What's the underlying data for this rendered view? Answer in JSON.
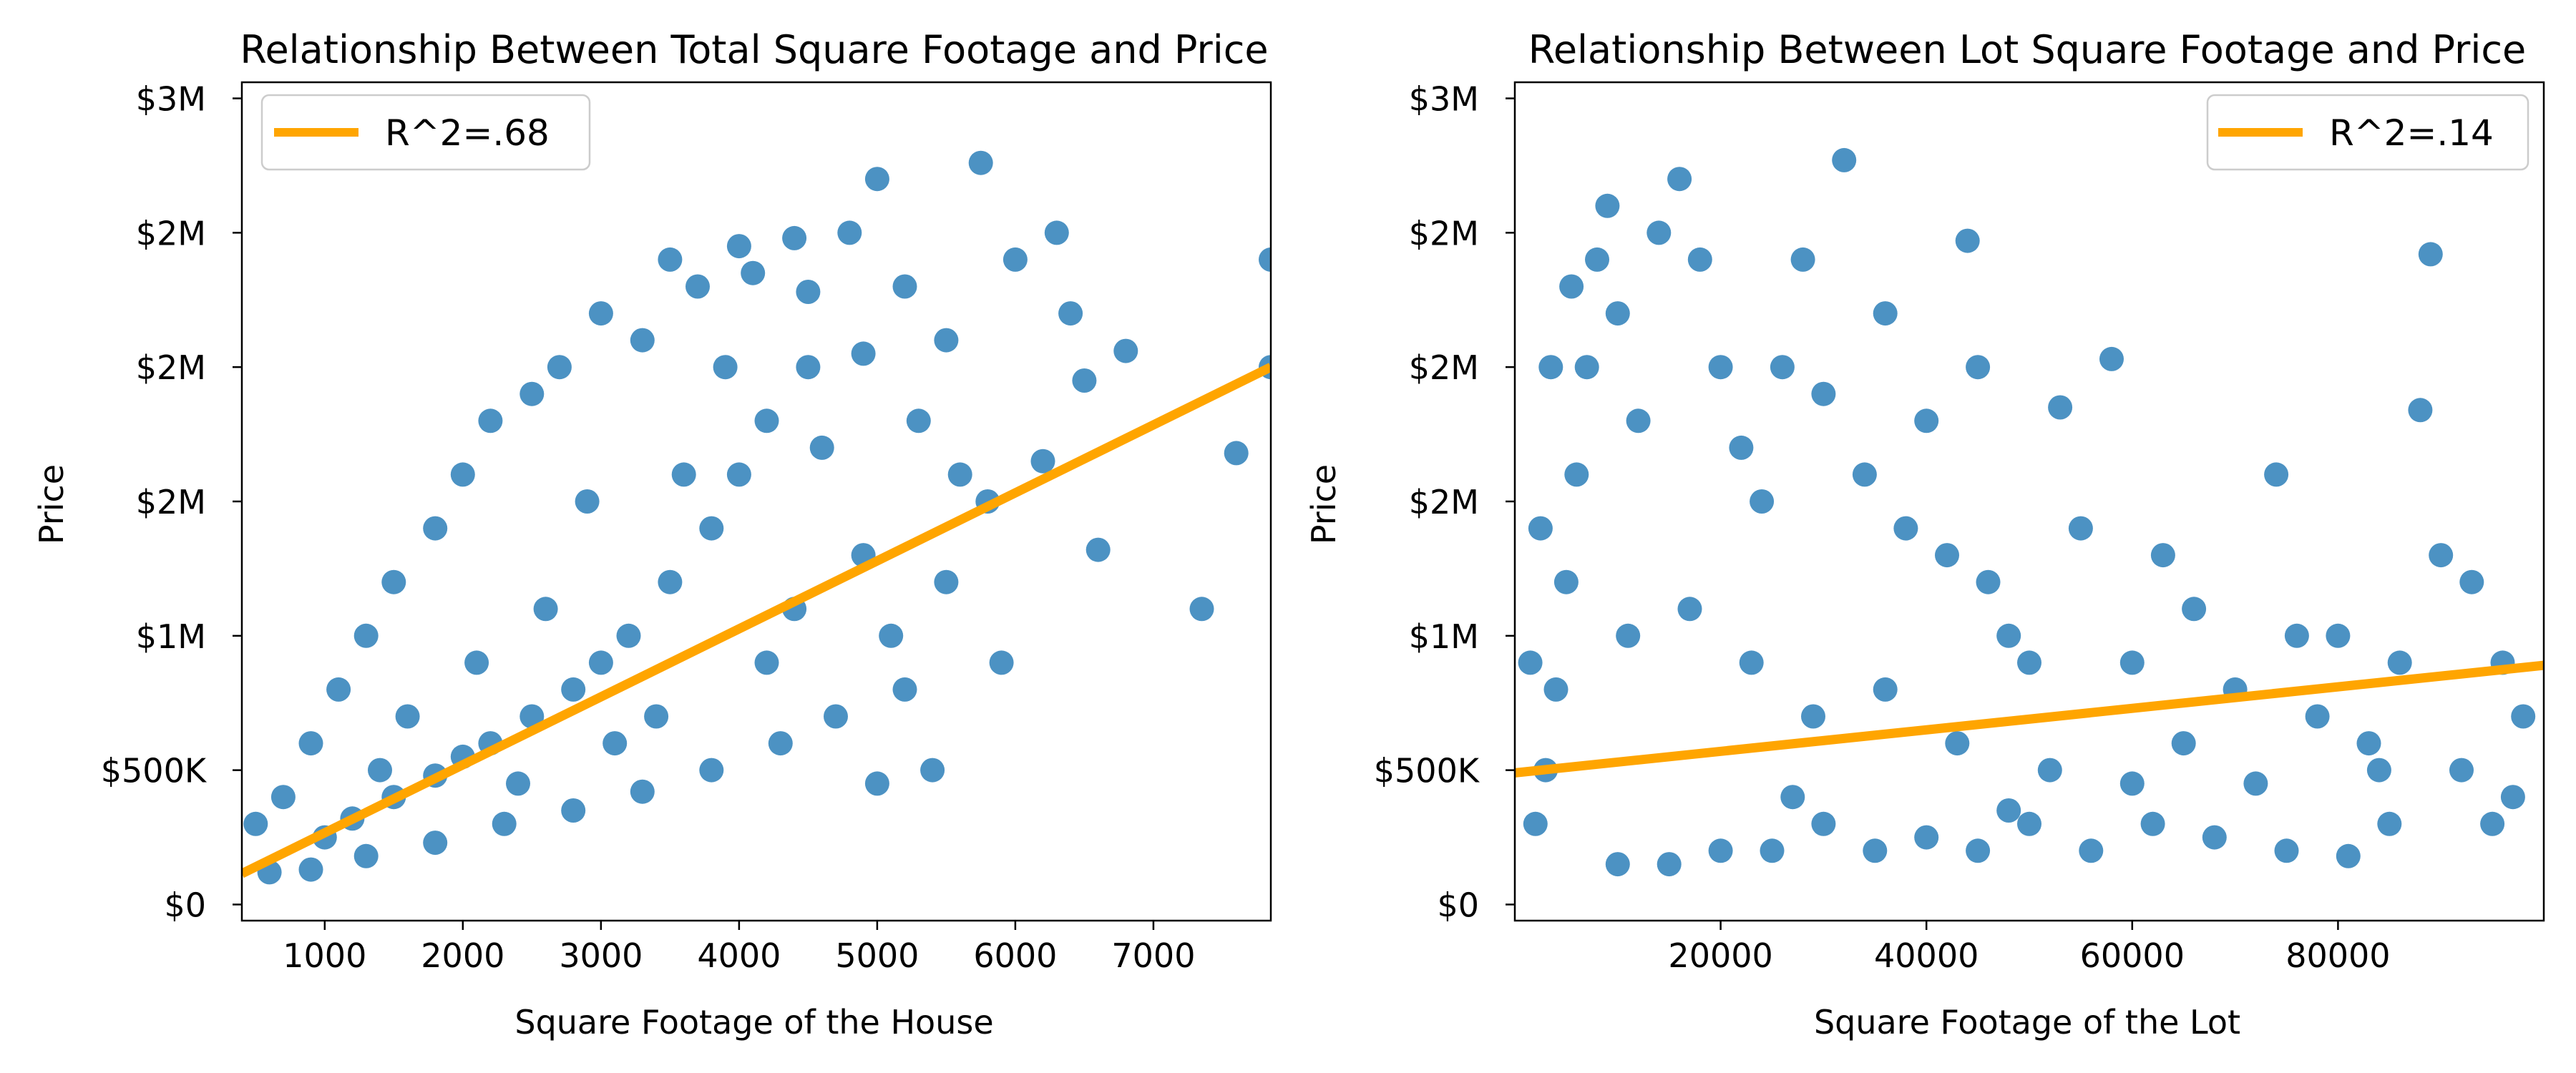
{
  "chart_data": [
    {
      "type": "scatter",
      "title": "Relationship Between Total Square Footage and Price",
      "xlabel": "Square Footage of the House",
      "ylabel": "Price",
      "xlim": [
        400,
        7850
      ],
      "ylim": [
        -60000,
        3060000
      ],
      "xticks": [
        1000,
        2000,
        3000,
        4000,
        5000,
        6000,
        7000
      ],
      "xtick_labels": [
        "1000",
        "2000",
        "3000",
        "4000",
        "5000",
        "6000",
        "7000"
      ],
      "yticks": [
        0,
        500000,
        1000000,
        1500000,
        2000000,
        2500000,
        3000000
      ],
      "ytick_labels": [
        "$0",
        "$500K",
        "$1M",
        "$2M",
        "$2M",
        "$2M",
        "$3M"
      ],
      "grid": false,
      "legend_placement": "top-left",
      "legend": [
        {
          "label": "R^2=.68",
          "color": "#FFA500"
        }
      ],
      "point_color": "#1f77b4",
      "trend_line": {
        "x": [
          400,
          7850
        ],
        "y": [
          115000,
          2000000
        ],
        "color": "#FFA500"
      },
      "points": [
        [
          1000,
          250000
        ],
        [
          1200,
          320000
        ],
        [
          1500,
          400000
        ],
        [
          1800,
          480000
        ],
        [
          2000,
          550000
        ],
        [
          2200,
          600000
        ],
        [
          2500,
          700000
        ],
        [
          2800,
          800000
        ],
        [
          3000,
          900000
        ],
        [
          3200,
          1000000
        ],
        [
          3500,
          1200000
        ],
        [
          3800,
          1400000
        ],
        [
          4000,
          1600000
        ],
        [
          4200,
          1800000
        ],
        [
          4500,
          2000000
        ],
        [
          2500,
          1900000
        ],
        [
          3000,
          2200000
        ],
        [
          3500,
          2400000
        ],
        [
          4000,
          2450000
        ],
        [
          4500,
          2280000
        ],
        [
          4800,
          2500000
        ],
        [
          5000,
          2700000
        ],
        [
          5200,
          2300000
        ],
        [
          5500,
          2100000
        ],
        [
          5750,
          2760000
        ],
        [
          6000,
          2400000
        ],
        [
          6300,
          2500000
        ],
        [
          6500,
          1950000
        ],
        [
          6800,
          2060000
        ],
        [
          7850,
          2400000
        ],
        [
          7850,
          2000000
        ],
        [
          7600,
          1680000
        ],
        [
          7350,
          1100000
        ],
        [
          6600,
          1320000
        ],
        [
          6200,
          1650000
        ],
        [
          5800,
          1500000
        ],
        [
          5500,
          1200000
        ],
        [
          5200,
          800000
        ],
        [
          5000,
          450000
        ],
        [
          4700,
          700000
        ],
        [
          4300,
          600000
        ],
        [
          3800,
          500000
        ],
        [
          3300,
          420000
        ],
        [
          2800,
          350000
        ],
        [
          2300,
          300000
        ],
        [
          1800,
          230000
        ],
        [
          1300,
          180000
        ],
        [
          900,
          130000
        ],
        [
          600,
          120000
        ],
        [
          500,
          300000
        ],
        [
          700,
          400000
        ],
        [
          900,
          600000
        ],
        [
          1100,
          800000
        ],
        [
          1300,
          1000000
        ],
        [
          1500,
          1200000
        ],
        [
          1800,
          1400000
        ],
        [
          2000,
          1600000
        ],
        [
          2200,
          1800000
        ],
        [
          2700,
          2000000
        ],
        [
          3300,
          2100000
        ],
        [
          3700,
          2300000
        ],
        [
          4100,
          2350000
        ],
        [
          4400,
          2480000
        ],
        [
          4600,
          1700000
        ],
        [
          4900,
          1300000
        ],
        [
          5300,
          1800000
        ],
        [
          5600,
          1600000
        ],
        [
          5900,
          900000
        ],
        [
          6400,
          2200000
        ],
        [
          1600,
          700000
        ],
        [
          2600,
          1100000
        ],
        [
          3600,
          1600000
        ],
        [
          4200,
          900000
        ],
        [
          2100,
          900000
        ],
        [
          2900,
          1500000
        ],
        [
          3900,
          2000000
        ],
        [
          1400,
          500000
        ],
        [
          2400,
          450000
        ],
        [
          3400,
          700000
        ],
        [
          4400,
          1100000
        ],
        [
          5400,
          500000
        ],
        [
          4900,
          2050000
        ],
        [
          5100,
          1000000
        ],
        [
          3100,
          600000
        ]
      ]
    },
    {
      "type": "scatter",
      "title": "Relationship Between Lot Square Footage and Price",
      "xlabel": "Square Footage of the Lot",
      "ylabel": "Price",
      "xlim": [
        0,
        100000
      ],
      "ylim": [
        -60000,
        3060000
      ],
      "xticks": [
        20000,
        40000,
        60000,
        80000
      ],
      "xtick_labels": [
        "20000",
        "40000",
        "60000",
        "80000"
      ],
      "yticks": [
        0,
        500000,
        1000000,
        1500000,
        2000000,
        2500000,
        3000000
      ],
      "ytick_labels": [
        "$0",
        "$500K",
        "$1M",
        "$2M",
        "$2M",
        "$2M",
        "$3M"
      ],
      "grid": false,
      "legend_placement": "top-right",
      "legend": [
        {
          "label": "R^2=.14",
          "color": "#FFA500"
        }
      ],
      "point_color": "#1f77b4",
      "trend_line": {
        "x": [
          0,
          100000
        ],
        "y": [
          490000,
          890000
        ],
        "color": "#FFA500"
      },
      "points": [
        [
          2000,
          300000
        ],
        [
          3000,
          500000
        ],
        [
          4000,
          800000
        ],
        [
          5000,
          1200000
        ],
        [
          6000,
          1600000
        ],
        [
          7000,
          2000000
        ],
        [
          8000,
          2400000
        ],
        [
          9000,
          2600000
        ],
        [
          10000,
          2200000
        ],
        [
          12000,
          1800000
        ],
        [
          14000,
          2500000
        ],
        [
          16000,
          2700000
        ],
        [
          18000,
          2400000
        ],
        [
          20000,
          2000000
        ],
        [
          22000,
          1700000
        ],
        [
          24000,
          1500000
        ],
        [
          26000,
          2000000
        ],
        [
          28000,
          2400000
        ],
        [
          30000,
          1900000
        ],
        [
          32000,
          2770000
        ],
        [
          34000,
          1600000
        ],
        [
          36000,
          2200000
        ],
        [
          38000,
          1400000
        ],
        [
          40000,
          1800000
        ],
        [
          42000,
          1300000
        ],
        [
          44000,
          2470000
        ],
        [
          45000,
          2000000
        ],
        [
          46000,
          1200000
        ],
        [
          48000,
          1000000
        ],
        [
          50000,
          900000
        ],
        [
          53000,
          1850000
        ],
        [
          55000,
          1400000
        ],
        [
          58000,
          2030000
        ],
        [
          60000,
          900000
        ],
        [
          63000,
          1300000
        ],
        [
          66000,
          1100000
        ],
        [
          70000,
          800000
        ],
        [
          74000,
          1600000
        ],
        [
          76000,
          1000000
        ],
        [
          78000,
          700000
        ],
        [
          80000,
          1000000
        ],
        [
          83000,
          600000
        ],
        [
          86000,
          900000
        ],
        [
          88000,
          1840000
        ],
        [
          89000,
          2420000
        ],
        [
          90000,
          1300000
        ],
        [
          93000,
          1200000
        ],
        [
          96000,
          900000
        ],
        [
          98000,
          700000
        ],
        [
          97000,
          400000
        ],
        [
          92000,
          500000
        ],
        [
          85000,
          300000
        ],
        [
          81000,
          180000
        ],
        [
          75000,
          200000
        ],
        [
          68000,
          250000
        ],
        [
          62000,
          300000
        ],
        [
          56000,
          200000
        ],
        [
          50000,
          300000
        ],
        [
          45000,
          200000
        ],
        [
          40000,
          250000
        ],
        [
          35000,
          200000
        ],
        [
          30000,
          300000
        ],
        [
          25000,
          200000
        ],
        [
          20000,
          200000
        ],
        [
          15000,
          150000
        ],
        [
          10000,
          150000
        ],
        [
          1500,
          900000
        ],
        [
          2500,
          1400000
        ],
        [
          3500,
          2000000
        ],
        [
          5500,
          2300000
        ],
        [
          11000,
          1000000
        ],
        [
          17000,
          1100000
        ],
        [
          23000,
          900000
        ],
        [
          29000,
          700000
        ],
        [
          36000,
          800000
        ],
        [
          43000,
          600000
        ],
        [
          52000,
          500000
        ],
        [
          65000,
          600000
        ],
        [
          72000,
          450000
        ],
        [
          84000,
          500000
        ],
        [
          95000,
          300000
        ],
        [
          60000,
          450000
        ],
        [
          48000,
          350000
        ],
        [
          27000,
          400000
        ]
      ]
    }
  ]
}
